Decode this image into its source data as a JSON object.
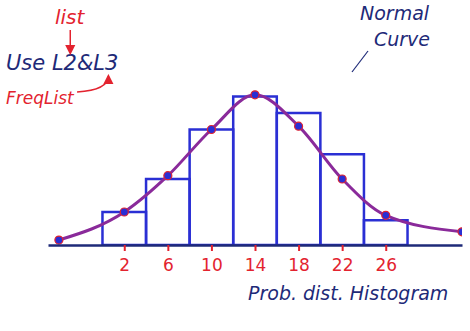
{
  "chart_data": {
    "type": "histogram",
    "xlabel": "Prob. dist. Histogram",
    "annotations": [
      "list",
      "Use L2&L3",
      "FreqList",
      "Normal Curve"
    ],
    "bins": [
      0,
      4,
      8,
      12,
      16,
      20,
      24,
      28
    ],
    "counts": [
      2,
      4,
      7,
      9,
      8,
      5.5,
      1.5
    ],
    "color": "#2a2fd4",
    "series": [
      {
        "type": "line",
        "x": [
          -4,
          2,
          6,
          10,
          14,
          18,
          22,
          26,
          33
        ],
        "values": [
          0.3,
          2.0,
          4.2,
          7.0,
          9.1,
          7.2,
          4.0,
          1.8,
          0.8
        ],
        "color": "#8a2a9a",
        "marker": "circle"
      }
    ],
    "xlim": [
      -5,
      33
    ],
    "xticks": [
      2,
      6,
      10,
      14,
      18,
      22,
      26
    ],
    "ylim": [
      0,
      10
    ],
    "tick_labels": "x"
  }
}
